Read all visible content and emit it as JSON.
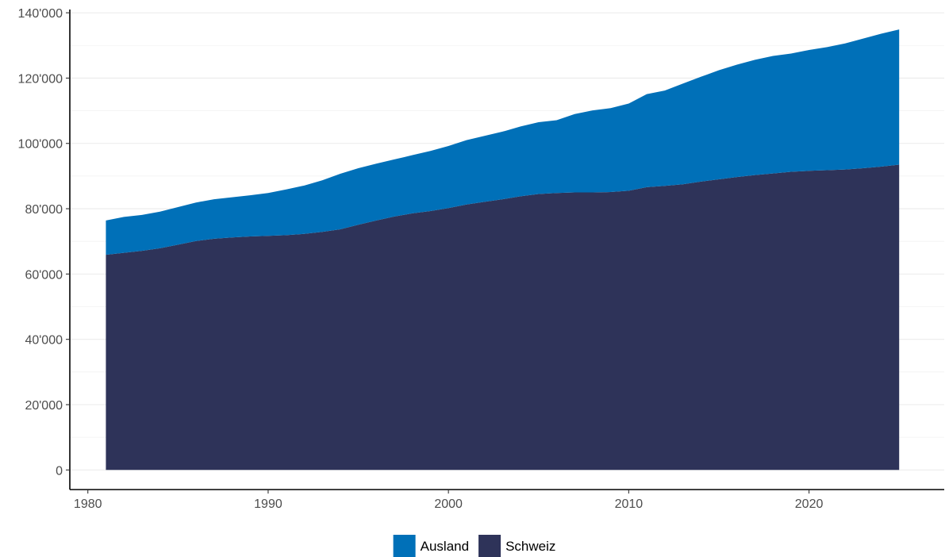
{
  "chart_data": {
    "type": "area",
    "stacked": true,
    "title": "",
    "xlabel": "",
    "ylabel": "",
    "x": [
      1981,
      1982,
      1983,
      1984,
      1985,
      1986,
      1987,
      1988,
      1989,
      1990,
      1991,
      1992,
      1993,
      1994,
      1995,
      1996,
      1997,
      1998,
      1999,
      2000,
      2001,
      2002,
      2003,
      2004,
      2005,
      2006,
      2007,
      2008,
      2009,
      2010,
      2011,
      2012,
      2013,
      2014,
      2015,
      2016,
      2017,
      2018,
      2019,
      2020,
      2021,
      2022,
      2023,
      2024,
      2025
    ],
    "series": [
      {
        "name": "Schweiz",
        "color": "#2e3359",
        "values": [
          65900,
          66500,
          67100,
          67900,
          69000,
          70100,
          70800,
          71200,
          71500,
          71700,
          71900,
          72300,
          72900,
          73700,
          75100,
          76400,
          77600,
          78600,
          79300,
          80200,
          81300,
          82100,
          82900,
          83800,
          84500,
          84800,
          85000,
          85000,
          85100,
          85500,
          86600,
          87000,
          87500,
          88300,
          89000,
          89700,
          90300,
          90800,
          91300,
          91600,
          91800,
          92000,
          92400,
          92900,
          93500
        ]
      },
      {
        "name": "Ausland",
        "color": "#0070b8",
        "values": [
          10500,
          11000,
          11000,
          11200,
          11500,
          11800,
          12100,
          12300,
          12600,
          13100,
          14000,
          14800,
          15800,
          17000,
          17300,
          17400,
          17500,
          17800,
          18400,
          19000,
          19700,
          20200,
          20700,
          21400,
          22000,
          22300,
          24000,
          25100,
          25700,
          26700,
          28500,
          29200,
          30800,
          32100,
          33400,
          34400,
          35300,
          36000,
          36200,
          37000,
          37700,
          38600,
          39700,
          40700,
          41400
        ]
      }
    ],
    "ylim": [
      -6000,
      141000
    ],
    "xlim": [
      1979,
      2027.5
    ],
    "y_ticks": [
      0,
      20000,
      40000,
      60000,
      80000,
      100000,
      120000,
      140000
    ],
    "y_tick_labels": [
      "0",
      "20'000",
      "40'000",
      "60'000",
      "80'000",
      "100'000",
      "120'000",
      "140'000"
    ],
    "x_ticks": [
      1980,
      1990,
      2000,
      2010,
      2020
    ],
    "x_tick_labels": [
      "1980",
      "1990",
      "2000",
      "2010",
      "2020"
    ],
    "grid": true,
    "legend": {
      "position": "bottom",
      "entries": [
        {
          "label": "Ausland",
          "color": "#0070b8"
        },
        {
          "label": "Schweiz",
          "color": "#2e3359"
        }
      ]
    }
  }
}
